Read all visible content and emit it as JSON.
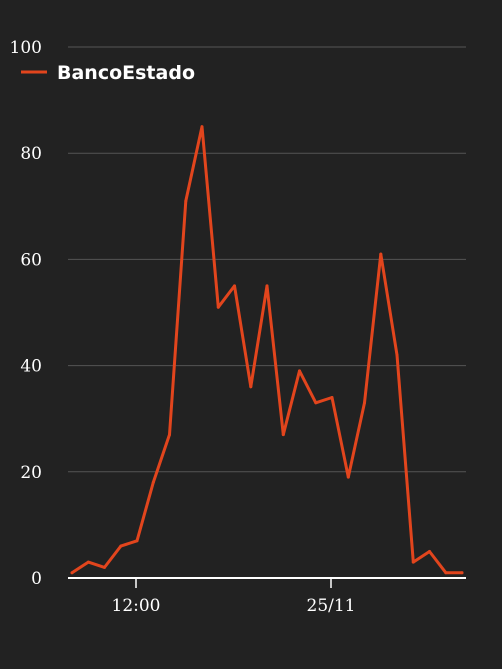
{
  "chart_data": {
    "type": "line",
    "title": "",
    "xlabel": "",
    "ylabel": "",
    "ylim": [
      0,
      100
    ],
    "y_ticks": [
      "0",
      "20",
      "40",
      "60",
      "80",
      "100"
    ],
    "x_ticks": [
      "12:00",
      "25/11"
    ],
    "grid": "horizontal",
    "legend_position": "top-left",
    "series": [
      {
        "name": "BancoEstado",
        "color": "#e2451d",
        "values": [
          1,
          3,
          2,
          6,
          7,
          18,
          27,
          71,
          85,
          51,
          55,
          36,
          55,
          27,
          39,
          33,
          34,
          19,
          33,
          61,
          42,
          3,
          5,
          1,
          1
        ]
      }
    ]
  },
  "colors": {
    "background": "#222222",
    "grid": "#555555",
    "axis": "#ffffff",
    "text": "#ffffff"
  }
}
